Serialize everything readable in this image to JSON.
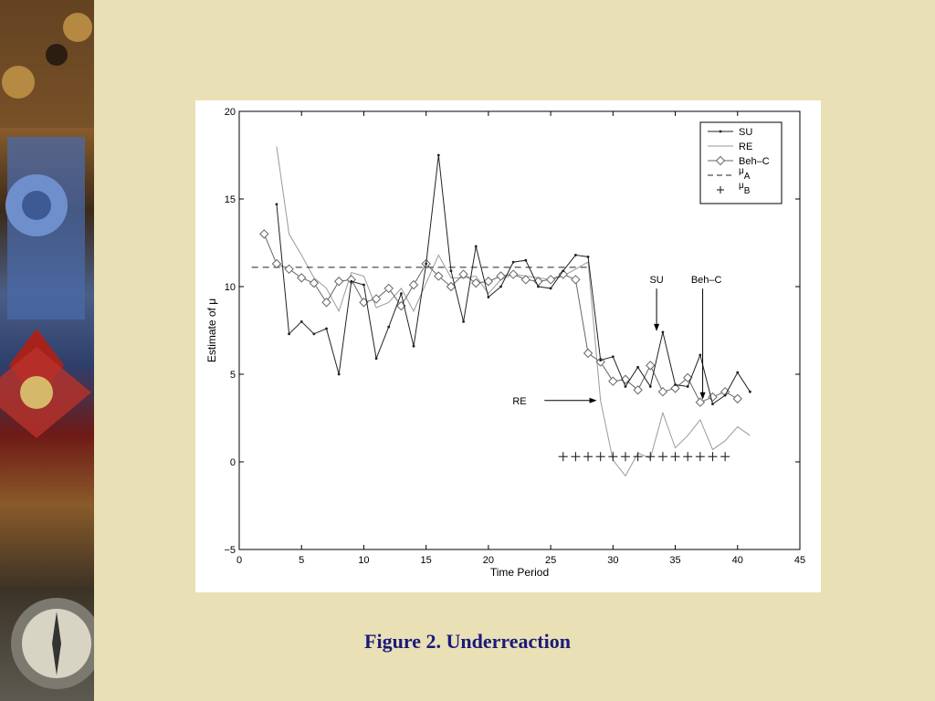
{
  "caption": "Figure 2. Underreaction",
  "colors": {
    "background": "#e9e0b6",
    "caption": "#1a1a7a",
    "su": "#222222",
    "re": "#9a9a9a",
    "beh_c": "#666666",
    "mu_a": "#222222",
    "mu_b": "#222222"
  },
  "side_image": {
    "description_icon": "medal-and-compass-image"
  },
  "chart_data": {
    "type": "line",
    "xlabel": "Time Period",
    "ylabel": "Estimate of μ",
    "xlim": [
      0,
      45
    ],
    "ylim": [
      -5,
      20
    ],
    "xticks": [
      0,
      5,
      10,
      15,
      20,
      25,
      30,
      35,
      40,
      45
    ],
    "yticks": [
      -5,
      0,
      5,
      10,
      15,
      20
    ],
    "legend_position": "top-right",
    "series": [
      {
        "name": "SU",
        "style": "line-dot",
        "x": [
          3,
          4,
          5,
          6,
          7,
          8,
          9,
          10,
          11,
          12,
          13,
          14,
          15,
          16,
          17,
          18,
          19,
          20,
          21,
          22,
          23,
          24,
          25,
          26,
          27,
          28,
          29,
          30,
          31,
          32,
          33,
          34,
          35,
          36,
          37,
          38,
          39,
          40,
          41
        ],
        "y": [
          14.7,
          7.3,
          8.0,
          7.3,
          7.6,
          5.0,
          10.3,
          10.1,
          5.9,
          7.7,
          9.6,
          6.6,
          11.3,
          17.5,
          10.9,
          8.0,
          12.3,
          9.4,
          10.0,
          11.4,
          11.5,
          10.0,
          9.9,
          10.9,
          11.8,
          11.7,
          5.8,
          6.0,
          4.3,
          5.4,
          4.3,
          7.4,
          4.4,
          4.3,
          6.1,
          3.3,
          3.8,
          5.1,
          4.0
        ]
      },
      {
        "name": "RE",
        "style": "thin-line",
        "x": [
          3,
          4,
          5,
          6,
          7,
          8,
          9,
          10,
          11,
          12,
          13,
          14,
          15,
          16,
          17,
          18,
          19,
          20,
          21,
          22,
          23,
          24,
          25,
          26,
          27,
          28,
          29,
          30,
          31,
          32,
          33,
          34,
          35,
          36,
          37,
          38,
          39,
          40,
          41
        ],
        "y": [
          18.0,
          13.0,
          11.8,
          10.5,
          9.9,
          8.6,
          10.8,
          10.6,
          8.8,
          9.1,
          9.9,
          8.6,
          10.2,
          11.8,
          10.5,
          10.5,
          10.6,
          9.6,
          10.4,
          10.7,
          10.6,
          10.5,
          10.4,
          10.6,
          11.0,
          11.4,
          3.5,
          0.1,
          -0.8,
          0.5,
          0.2,
          2.8,
          0.8,
          1.5,
          2.4,
          0.7,
          1.2,
          2.0,
          1.5
        ]
      },
      {
        "name": "Beh–C",
        "style": "line-diamond",
        "x": [
          2,
          3,
          4,
          5,
          6,
          7,
          8,
          9,
          10,
          11,
          12,
          13,
          14,
          15,
          16,
          17,
          18,
          19,
          20,
          21,
          22,
          23,
          24,
          25,
          26,
          27,
          28,
          29,
          30,
          31,
          32,
          33,
          34,
          35,
          36,
          37,
          38,
          39,
          40
        ],
        "y": [
          13.0,
          11.3,
          11.0,
          10.5,
          10.2,
          9.1,
          10.3,
          10.4,
          9.1,
          9.3,
          9.9,
          8.9,
          10.1,
          11.3,
          10.6,
          10.0,
          10.7,
          10.2,
          10.3,
          10.6,
          10.7,
          10.4,
          10.3,
          10.4,
          10.7,
          10.4,
          6.2,
          5.7,
          4.6,
          4.7,
          4.1,
          5.5,
          4.0,
          4.2,
          4.8,
          3.4,
          3.7,
          4.0,
          3.6
        ]
      },
      {
        "name": "μA",
        "style": "dashed",
        "x": [
          1,
          28
        ],
        "y": [
          11.1,
          11.1
        ]
      },
      {
        "name": "μB",
        "style": "plus-markers",
        "x": [
          26,
          27,
          28,
          29,
          30,
          31,
          32,
          33,
          34,
          35,
          36,
          37,
          38,
          39
        ],
        "y": [
          0.3,
          0.3,
          0.3,
          0.3,
          0.3,
          0.3,
          0.3,
          0.3,
          0.3,
          0.3,
          0.3,
          0.3,
          0.3,
          0.3
        ]
      }
    ],
    "annotations": [
      {
        "text": "SU",
        "x": 33.5,
        "y": 8.5,
        "arrow_to": [
          33.5,
          7.4
        ],
        "label_x": 33.5,
        "label_y": 10.2
      },
      {
        "text": "Beh–C",
        "x": 37.2,
        "y": 3.5,
        "arrow_to": [
          37.2,
          3.5
        ],
        "label_x": 37.5,
        "label_y": 10.2
      },
      {
        "text": "RE",
        "x": 28.7,
        "y": 3.5,
        "arrow_from": [
          24.5,
          3.5
        ],
        "label_x": 22.5,
        "label_y": 3.5
      }
    ]
  }
}
